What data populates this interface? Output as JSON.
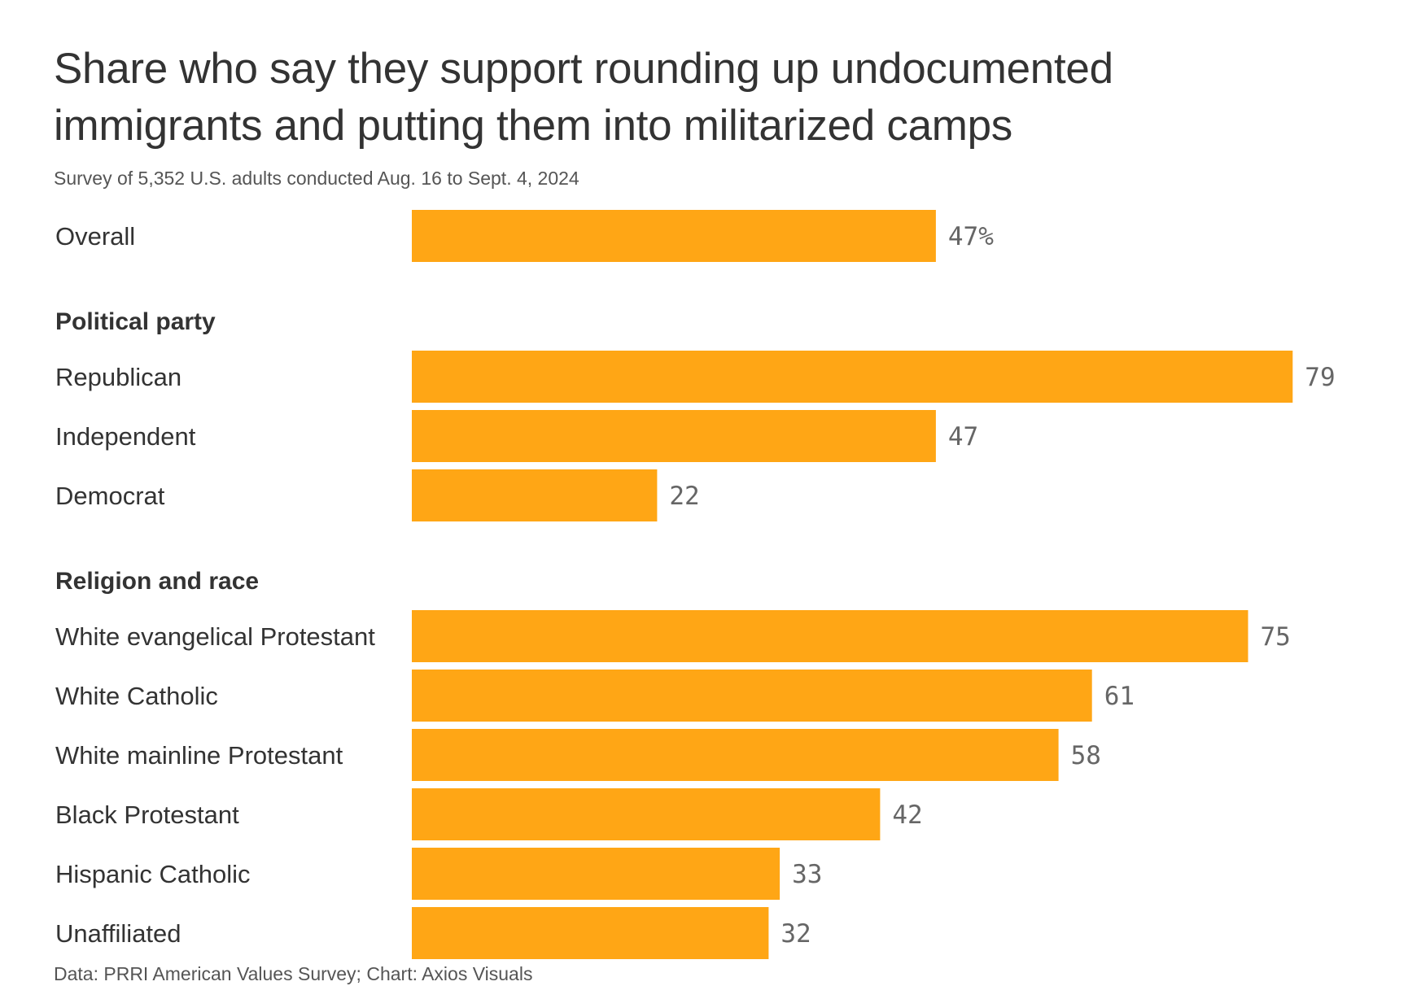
{
  "chart_data": {
    "type": "bar",
    "orientation": "horizontal",
    "title": "Share who say they support rounding up undocumented immigrants and putting them into militarized camps",
    "subtitle": "Survey of 5,352 U.S. adults conducted Aug. 16 to Sept. 4, 2024",
    "source": "Data: PRRI American Values Survey; Chart: Axios Visuals",
    "bar_color": "#FFA615",
    "value_suffix_first": "%",
    "xlim": [
      0,
      100
    ],
    "grid": false,
    "legend": "none",
    "groups": [
      {
        "name": "",
        "rows": [
          {
            "label": "Overall",
            "value": 47,
            "value_label": "47%"
          }
        ]
      },
      {
        "name": "Political party",
        "rows": [
          {
            "label": "Republican",
            "value": 79,
            "value_label": "79"
          },
          {
            "label": "Independent",
            "value": 47,
            "value_label": "47"
          },
          {
            "label": "Democrat",
            "value": 22,
            "value_label": "22"
          }
        ]
      },
      {
        "name": "Religion and race",
        "rows": [
          {
            "label": "White evangelical Protestant",
            "value": 75,
            "value_label": "75"
          },
          {
            "label": "White Catholic",
            "value": 61,
            "value_label": "61"
          },
          {
            "label": "White mainline Protestant",
            "value": 58,
            "value_label": "58"
          },
          {
            "label": "Black Protestant",
            "value": 42,
            "value_label": "42"
          },
          {
            "label": "Hispanic Catholic",
            "value": 33,
            "value_label": "33"
          },
          {
            "label": "Unaffiliated",
            "value": 32,
            "value_label": "32"
          }
        ]
      }
    ]
  }
}
